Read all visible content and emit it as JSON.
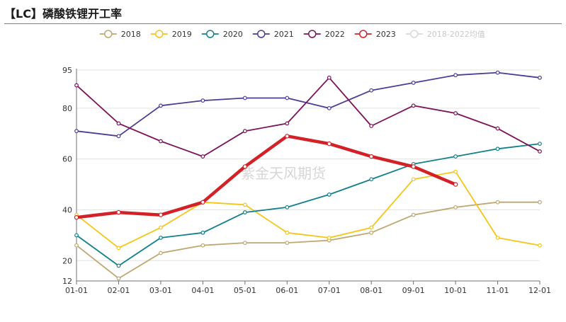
{
  "title": "【LC】磷酸铁锂开工率",
  "watermark": "紫金天风期货",
  "chart_data": {
    "type": "line",
    "title": "【LC】磷酸铁锂开工率",
    "xlabel": "",
    "ylabel": "",
    "categories": [
      "01-01",
      "02-01",
      "03-01",
      "04-01",
      "05-01",
      "06-01",
      "07-01",
      "08-01",
      "09-01",
      "10-01",
      "11-01",
      "12-01"
    ],
    "ylim": [
      12,
      95
    ],
    "yticks": [
      12,
      20,
      40,
      60,
      80,
      95
    ],
    "legend_position": "top",
    "series": [
      {
        "name": "2018",
        "color": "#bfa76f",
        "values": [
          26,
          13,
          23,
          26,
          27,
          27,
          28,
          31,
          38,
          41,
          43,
          43
        ]
      },
      {
        "name": "2019",
        "color": "#f5c518",
        "values": [
          38,
          25,
          33,
          43,
          42,
          31,
          29,
          33,
          52,
          55,
          29,
          26
        ]
      },
      {
        "name": "2020",
        "color": "#11808a",
        "values": [
          30,
          18,
          29,
          31,
          39,
          41,
          46,
          52,
          58,
          61,
          64,
          66
        ]
      },
      {
        "name": "2021",
        "color": "#4b3c96",
        "values": [
          71,
          69,
          81,
          83,
          84,
          84,
          80,
          87,
          90,
          93,
          94,
          92
        ]
      },
      {
        "name": "2022",
        "color": "#7d1458",
        "values": [
          89,
          74,
          67,
          61,
          71,
          74,
          92,
          73,
          81,
          78,
          72,
          63
        ]
      },
      {
        "name": "2023",
        "color": "#d42128",
        "values": [
          37,
          39,
          38,
          43,
          57,
          69,
          66,
          61,
          57,
          50,
          null,
          null
        ]
      },
      {
        "name": "2018-2022均值",
        "color": "#d9d9d9",
        "values": [
          null,
          null,
          null,
          null,
          null,
          null,
          null,
          null,
          null,
          null,
          null,
          null
        ]
      }
    ]
  }
}
